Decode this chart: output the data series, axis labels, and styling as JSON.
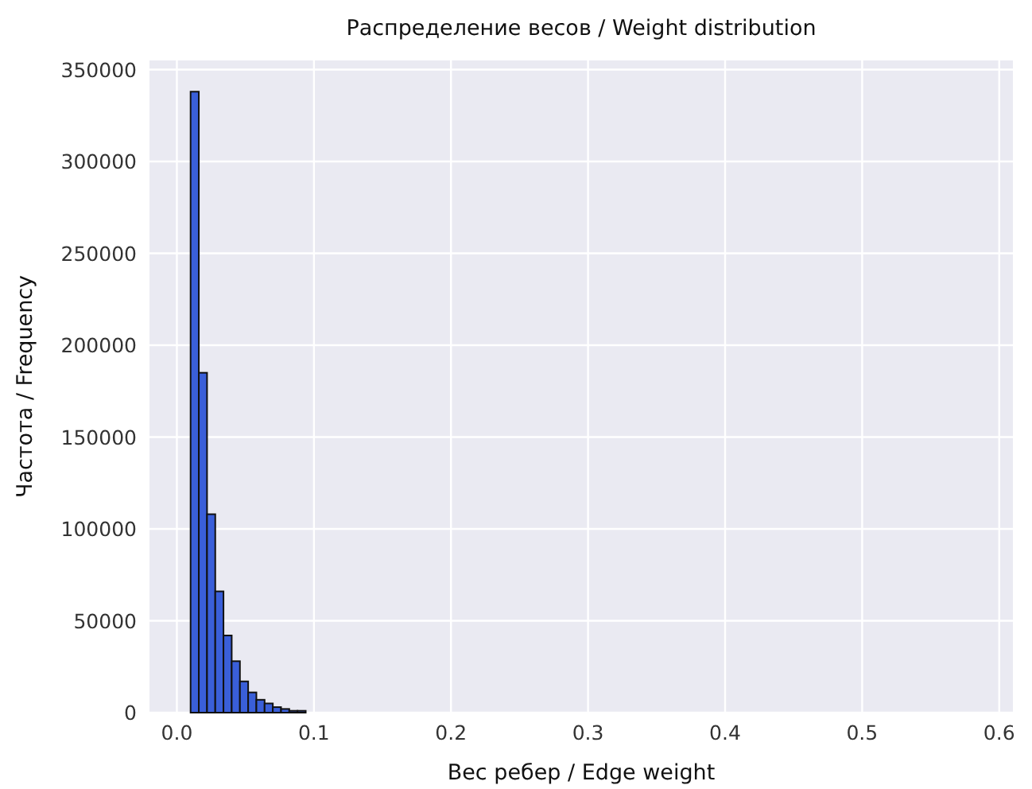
{
  "chart_data": {
    "type": "histogram",
    "title": "Распределение весов / Weight distribution",
    "xlabel": "Вес ребер / Edge weight",
    "ylabel": "Частота / Frequency",
    "bins": [
      0.01,
      0.016,
      0.022,
      0.028,
      0.034,
      0.04,
      0.046,
      0.052,
      0.058,
      0.064,
      0.07,
      0.076,
      0.082,
      0.088,
      0.094
    ],
    "values": [
      338000,
      185000,
      108000,
      66000,
      42000,
      28000,
      17000,
      11000,
      7000,
      5000,
      3000,
      2000,
      1000,
      1000
    ],
    "color": "#3a5fd9",
    "xlim": [
      -0.02,
      0.61
    ],
    "ylim": [
      0,
      355000
    ],
    "xticks": [
      {
        "value": 0,
        "label": "0.0"
      },
      0.1,
      0.2,
      0.3,
      0.4,
      0.5,
      0.6
    ],
    "yticks": [
      0,
      50000,
      100000,
      150000,
      200000,
      250000,
      300000,
      350000
    ],
    "grid": true
  }
}
